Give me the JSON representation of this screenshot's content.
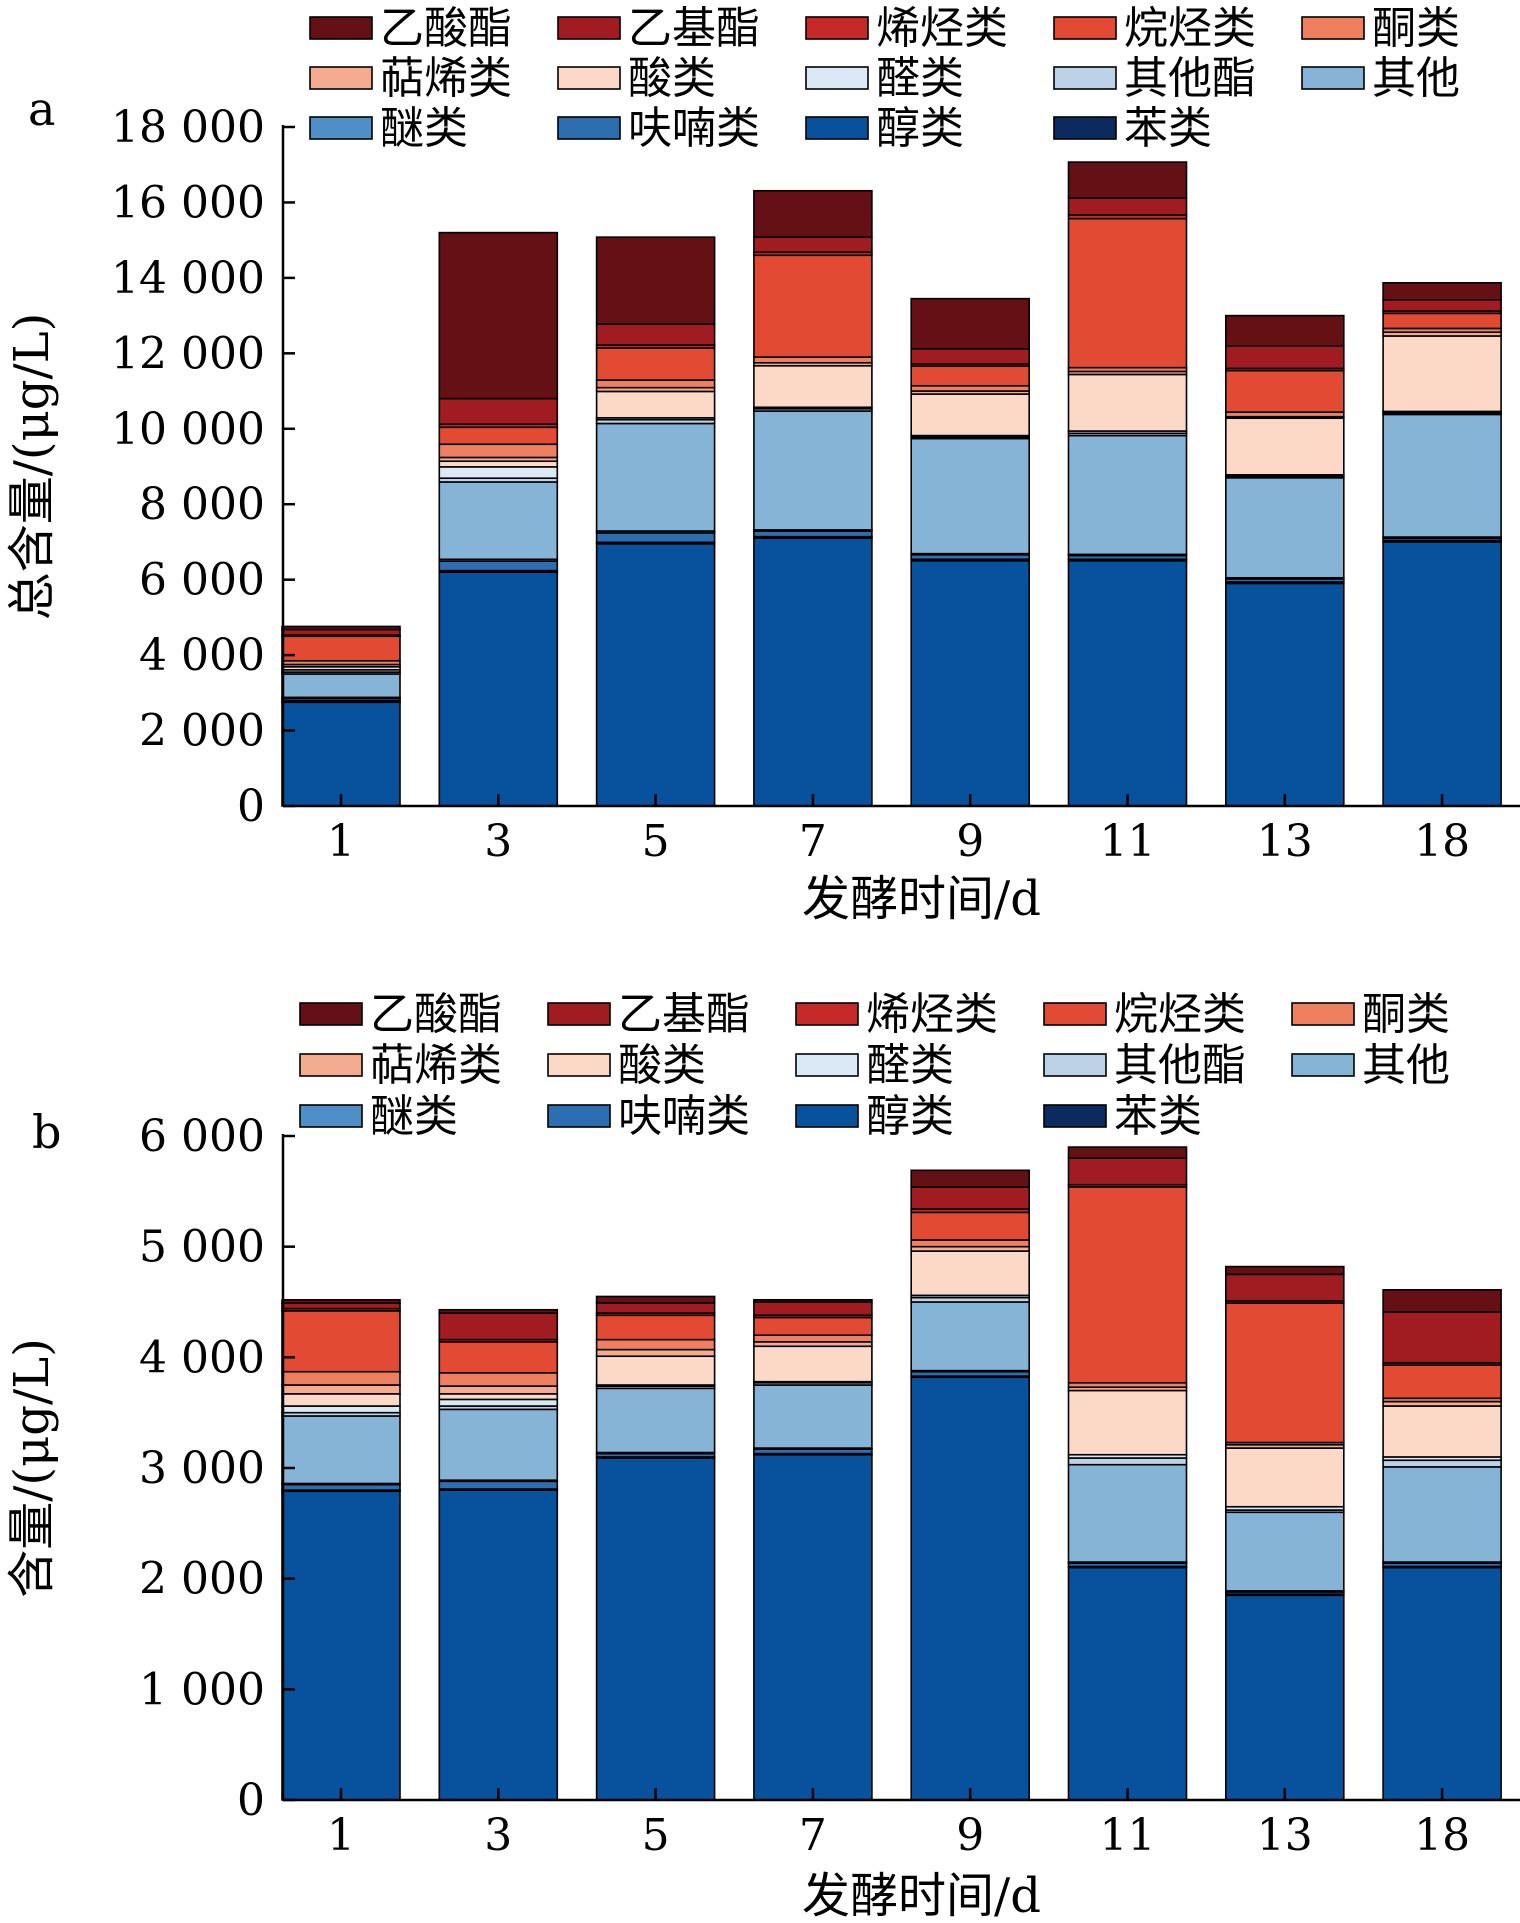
{
  "chart_data": [
    {
      "type": "bar",
      "stacked": true,
      "panel_label": "a",
      "xlabel": "发酵时间/d",
      "ylabel": "总含量/(μg/L)",
      "ylim": [
        0,
        18000
      ],
      "yticks": [
        0,
        2000,
        4000,
        6000,
        8000,
        10000,
        12000,
        14000,
        16000,
        18000
      ],
      "ytick_labels": [
        "0",
        "2 000",
        "4 000",
        "6 000",
        "8 000",
        "10 000",
        "12 000",
        "14 000",
        "16 000",
        "18 000"
      ],
      "categories": [
        "1",
        "3",
        "5",
        "7",
        "9",
        "11",
        "13",
        "18"
      ],
      "series": [
        {
          "name": "醇类",
          "color": "#08519c",
          "values": [
            2750,
            6200,
            6950,
            7100,
            6500,
            6500,
            5900,
            7000
          ]
        },
        {
          "name": "苯类",
          "color": "#0b2a5e",
          "values": [
            40,
            40,
            40,
            40,
            40,
            40,
            40,
            40
          ]
        },
        {
          "name": "呋喃类",
          "color": "#2c6eb0",
          "values": [
            60,
            250,
            250,
            150,
            120,
            100,
            80,
            60
          ]
        },
        {
          "name": "醚类",
          "color": "#4f8fc6",
          "values": [
            30,
            50,
            50,
            30,
            30,
            30,
            30,
            30
          ]
        },
        {
          "name": "其他",
          "color": "#85b4d6",
          "values": [
            620,
            2050,
            2850,
            3150,
            3050,
            3150,
            2650,
            3250
          ]
        },
        {
          "name": "其他酯",
          "color": "#bcd3e7",
          "values": [
            50,
            100,
            100,
            60,
            40,
            60,
            40,
            40
          ]
        },
        {
          "name": "醛类",
          "color": "#dbe9f6",
          "values": [
            60,
            300,
            50,
            40,
            40,
            60,
            40,
            40
          ]
        },
        {
          "name": "酸类",
          "color": "#fcd9c7",
          "values": [
            80,
            150,
            700,
            1100,
            1100,
            1500,
            1500,
            2000
          ]
        },
        {
          "name": "萜烯类",
          "color": "#f5ab8f",
          "values": [
            60,
            100,
            100,
            80,
            80,
            80,
            40,
            100
          ]
        },
        {
          "name": "酮类",
          "color": "#ee8060",
          "values": [
            100,
            350,
            200,
            150,
            140,
            100,
            120,
            100
          ]
        },
        {
          "name": "烷烃类",
          "color": "#e34a33",
          "values": [
            650,
            450,
            850,
            2700,
            520,
            3950,
            1100,
            400
          ]
        },
        {
          "name": "烯烃类",
          "color": "#c62a28",
          "values": [
            30,
            80,
            80,
            80,
            60,
            100,
            60,
            60
          ]
        },
        {
          "name": "乙基酯",
          "color": "#a01c20",
          "values": [
            150,
            680,
            560,
            400,
            400,
            450,
            600,
            300
          ]
        },
        {
          "name": "乙酸酯",
          "color": "#651015",
          "values": [
            80,
            4400,
            2300,
            1230,
            1330,
            950,
            800,
            450
          ]
        }
      ]
    },
    {
      "type": "bar",
      "stacked": true,
      "panel_label": "b",
      "xlabel": "发酵时间/d",
      "ylabel": "含量/(μg/L)",
      "ylim": [
        0,
        6000
      ],
      "yticks": [
        0,
        1000,
        2000,
        3000,
        4000,
        5000,
        6000
      ],
      "ytick_labels": [
        "0",
        "1 000",
        "2 000",
        "3 000",
        "4 000",
        "5 000",
        "6 000"
      ],
      "categories": [
        "1",
        "3",
        "5",
        "7",
        "9",
        "11",
        "13",
        "18"
      ],
      "series": [
        {
          "name": "醇类",
          "color": "#08519c",
          "values": [
            2790,
            2800,
            3090,
            3120,
            3820,
            2100,
            1850,
            2100
          ]
        },
        {
          "name": "苯类",
          "color": "#0b2a5e",
          "values": [
            10,
            10,
            10,
            10,
            10,
            10,
            10,
            10
          ]
        },
        {
          "name": "呋喃类",
          "color": "#2c6eb0",
          "values": [
            50,
            70,
            30,
            40,
            40,
            30,
            20,
            30
          ]
        },
        {
          "name": "醚类",
          "color": "#4f8fc6",
          "values": [
            10,
            10,
            10,
            10,
            10,
            10,
            10,
            10
          ]
        },
        {
          "name": "其他",
          "color": "#85b4d6",
          "values": [
            610,
            640,
            580,
            570,
            620,
            880,
            710,
            860
          ]
        },
        {
          "name": "其他酯",
          "color": "#bcd3e7",
          "values": [
            30,
            30,
            20,
            20,
            40,
            60,
            20,
            60
          ]
        },
        {
          "name": "醛类",
          "color": "#dbe9f6",
          "values": [
            60,
            60,
            10,
            10,
            20,
            30,
            30,
            30
          ]
        },
        {
          "name": "酸类",
          "color": "#fcd9c7",
          "values": [
            110,
            50,
            260,
            320,
            400,
            580,
            530,
            460
          ]
        },
        {
          "name": "萜烯类",
          "color": "#f5ab8f",
          "values": [
            80,
            70,
            60,
            40,
            40,
            30,
            30,
            40
          ]
        },
        {
          "name": "酮类",
          "color": "#ee8060",
          "values": [
            120,
            120,
            90,
            60,
            60,
            40,
            20,
            30
          ]
        },
        {
          "name": "烷烃类",
          "color": "#e34a33",
          "values": [
            550,
            280,
            220,
            160,
            250,
            1770,
            1260,
            300
          ]
        },
        {
          "name": "烯烃类",
          "color": "#c62a28",
          "values": [
            20,
            20,
            20,
            20,
            30,
            20,
            20,
            20
          ]
        },
        {
          "name": "乙基酯",
          "color": "#a01c20",
          "values": [
            50,
            240,
            90,
            120,
            200,
            240,
            240,
            460
          ]
        },
        {
          "name": "乙酸酯",
          "color": "#651015",
          "values": [
            30,
            30,
            60,
            20,
            150,
            100,
            70,
            200
          ]
        }
      ]
    }
  ],
  "legend_order": [
    "乙酸酯",
    "乙基酯",
    "烯烃类",
    "烷烃类",
    "酮类",
    "萜烯类",
    "酸类",
    "醛类",
    "其他酯",
    "其他",
    "醚类",
    "呋喃类",
    "醇类",
    "苯类"
  ]
}
